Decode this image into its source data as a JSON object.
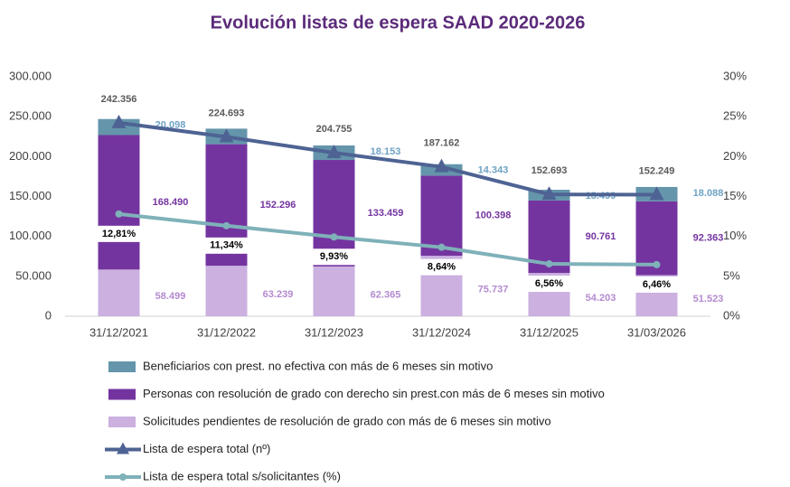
{
  "chart_data": {
    "type": "bar-line",
    "title": "Evolución listas de espera SAAD 2020-2026",
    "categories": [
      "31/12/2021",
      "31/12/2022",
      "31/12/2023",
      "31/12/2024",
      "31/12/2025",
      "31/03/2026"
    ],
    "series": [
      {
        "name": "Beneficiarios con prest. no efectiva con más de 6 meses sin motivo",
        "type": "bar",
        "color": "#6495ab",
        "values": [
          20098,
          19500,
          18153,
          14343,
          13499,
          18088
        ],
        "value_labels": [
          "20.098",
          null,
          "18.153",
          "14.343",
          "13.499",
          "18.088"
        ],
        "label_color": "#6fa3c4"
      },
      {
        "name": "Personas con resolución de grado con derecho sin prest.con más de 6 meses sin motivo",
        "type": "bar",
        "color": "#7434a0",
        "values": [
          168490,
          152296,
          133459,
          100398,
          90761,
          92363
        ],
        "value_labels": [
          "168.490",
          "152.296",
          "133.459",
          "100.398",
          "90.761",
          "92.363"
        ],
        "label_color": "#7434a0"
      },
      {
        "name": "Solicitudes pendientes de resolución de grado con más de 6 meses sin motivo",
        "type": "bar",
        "color": "#cbb0e0",
        "values": [
          58499,
          63239,
          62365,
          75737,
          54203,
          51523
        ],
        "value_labels": [
          "58.499",
          "63.239",
          "62.365",
          "75.737",
          "54.203",
          "51.523"
        ],
        "label_color": "#b48ad0"
      },
      {
        "name": "Lista de espera total (nº)",
        "type": "line",
        "marker": "triangle",
        "color": "#4e6393",
        "values": [
          242356,
          224693,
          204755,
          187162,
          152693,
          152249
        ],
        "value_labels": [
          "242.356",
          "224.693",
          "204.755",
          "187.162",
          "152.693",
          "152.249"
        ],
        "label_color": "#5a5a5a"
      },
      {
        "name": "Lista de espera total s/solicitantes (%)",
        "type": "line",
        "marker": "circle",
        "color": "#7fb1b9",
        "axis": "y2",
        "values": [
          12.81,
          11.34,
          9.93,
          8.64,
          6.56,
          6.46
        ],
        "value_labels": [
          "12,81%",
          "11,34%",
          "9,93%",
          "8,64%",
          "6,56%",
          "6,46%"
        ],
        "label_color": "#000000"
      }
    ],
    "ylim": [
      0,
      300000
    ],
    "yticks": [
      0,
      {
        "value": 50000,
        "label": "50.000"
      },
      {
        "value": 100000,
        "label": "100.000"
      },
      {
        "value": 150000,
        "label": "150.000"
      },
      {
        "value": 200000,
        "label": "200.000"
      },
      {
        "value": 250000,
        "label": "250.000"
      },
      {
        "value": 300000,
        "label": "300.000"
      }
    ],
    "y2lim": [
      0,
      30
    ],
    "y2ticks": [
      {
        "value": 0,
        "label": "0%"
      },
      {
        "value": 5,
        "label": "5%"
      },
      {
        "value": 10,
        "label": "10%"
      },
      {
        "value": 15,
        "label": "15%"
      },
      {
        "value": 20,
        "label": "20%"
      },
      {
        "value": 25,
        "label": "25%"
      },
      {
        "value": 30,
        "label": "30%"
      }
    ],
    "grid": false,
    "legend": "bottom"
  }
}
